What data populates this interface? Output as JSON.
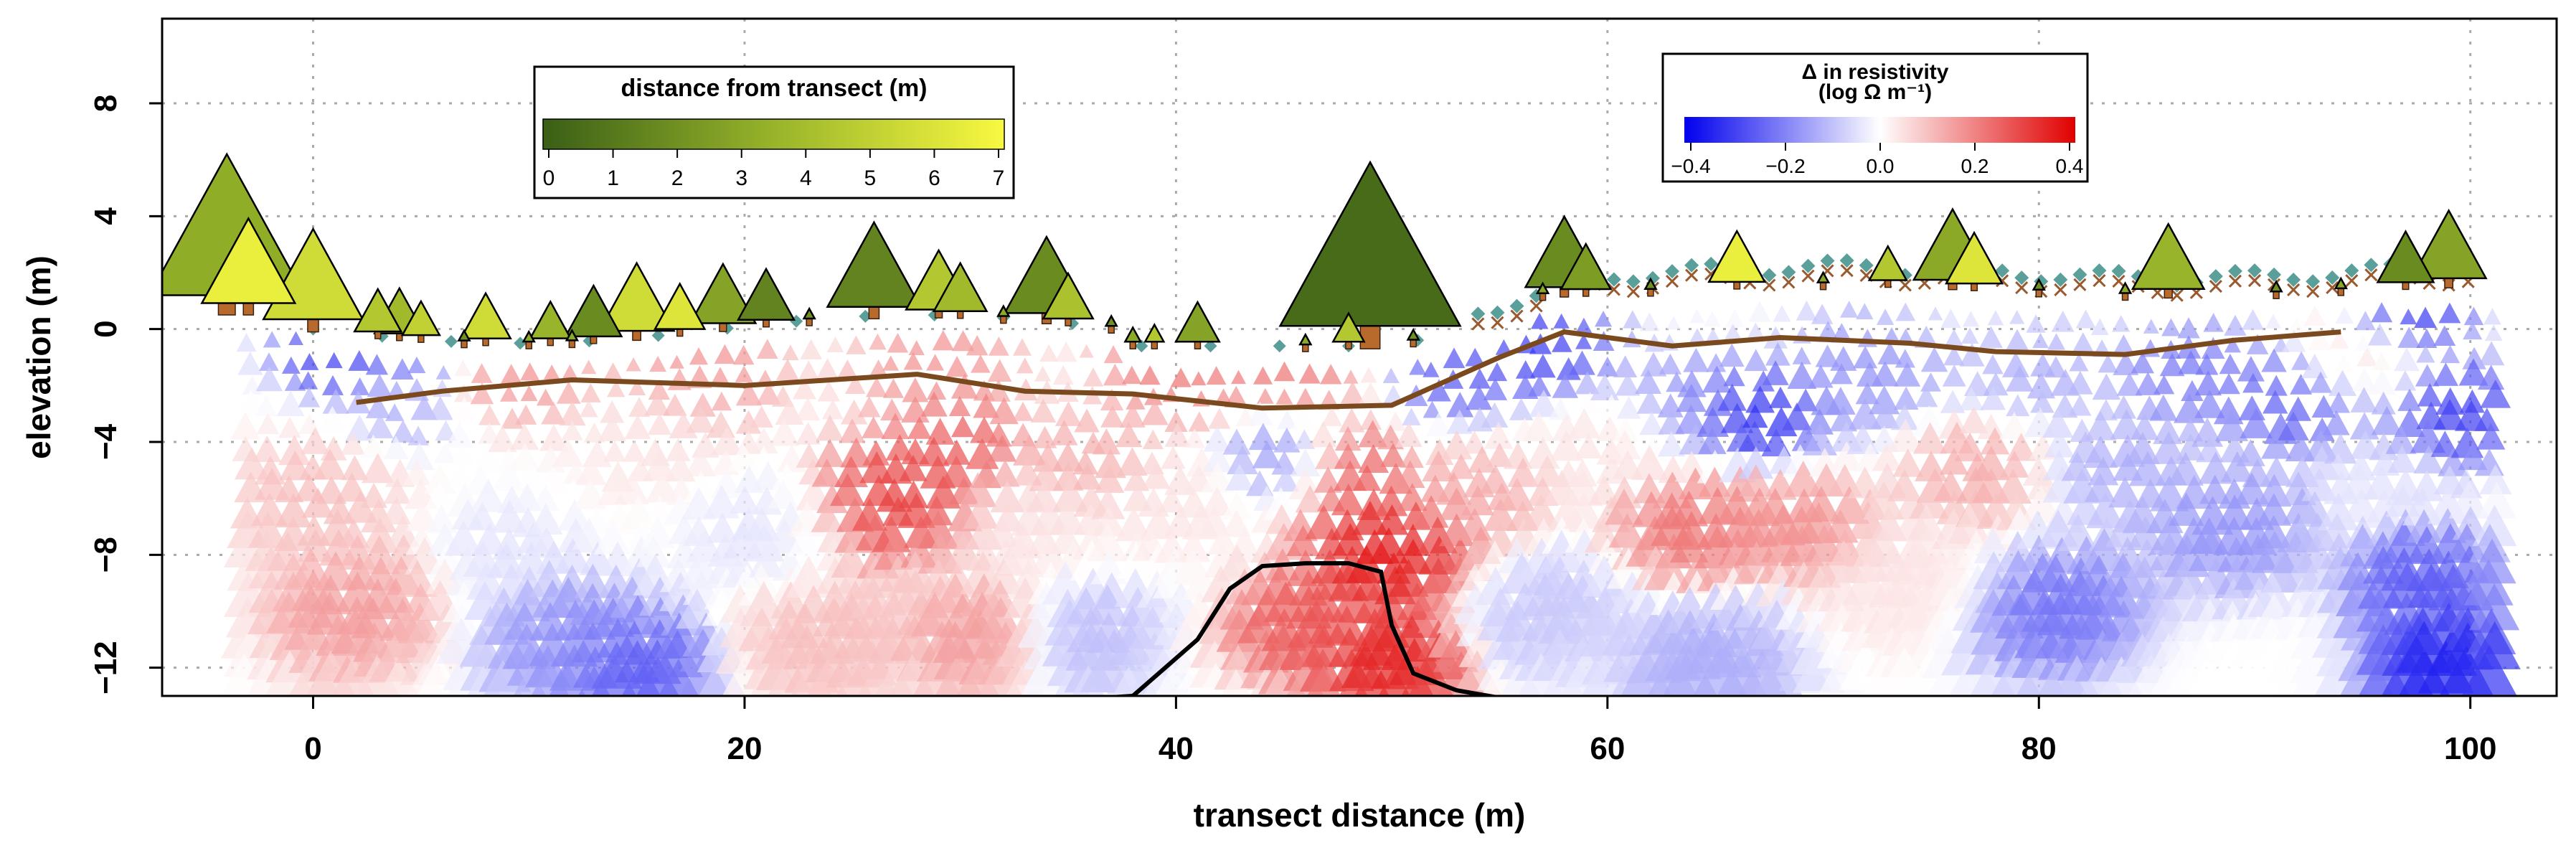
{
  "chart_data": {
    "type": "scatter",
    "xlabel": "transect distance (m)",
    "ylabel": "elevation (m)",
    "xlim": [
      -7,
      104
    ],
    "ylim": [
      -13,
      11
    ],
    "xticks": [
      0,
      20,
      40,
      60,
      80,
      100
    ],
    "xtick_labels": [
      "0",
      "20",
      "40",
      "60",
      "80",
      "100"
    ],
    "yticks": [
      -12,
      -8,
      -4,
      0,
      4,
      8
    ],
    "ytick_labels": [
      "−12",
      "−8",
      "−4",
      "0",
      "4",
      "8"
    ],
    "grid": true,
    "legends": {
      "distance": {
        "title": "distance from transect (m)",
        "tick_labels": [
          "0",
          "1",
          "2",
          "3",
          "4",
          "5",
          "6",
          "7"
        ],
        "colors": [
          "#3a5f16",
          "#f8f840"
        ],
        "placement": "top-left"
      },
      "resistivity": {
        "title_line1": "Δ in resistivity",
        "title_line2": "(log Ω m⁻¹)",
        "tick_labels": [
          "−0.4",
          "−0.2",
          "0.0",
          "0.2",
          "0.4"
        ],
        "colors": [
          "#0000ee",
          "#ffffff",
          "#e00000"
        ],
        "placement": "top-right"
      }
    },
    "trees": [
      {
        "x": -4,
        "h": 5.0,
        "d": 3.2
      },
      {
        "x": -3,
        "h": 3.0,
        "d": 6.5
      },
      {
        "x": 0,
        "h": 3.2,
        "d": 5.5
      },
      {
        "x": 3,
        "h": 1.5,
        "d": 4.5
      },
      {
        "x": 4,
        "h": 1.6,
        "d": 3.8
      },
      {
        "x": 5,
        "h": 1.2,
        "d": 5.0
      },
      {
        "x": 8,
        "h": 1.6,
        "d": 5.5
      },
      {
        "x": 11,
        "h": 1.3,
        "d": 3.5
      },
      {
        "x": 13,
        "h": 1.8,
        "d": 1.8
      },
      {
        "x": 15,
        "h": 2.4,
        "d": 5.5
      },
      {
        "x": 17,
        "h": 1.6,
        "d": 6.0
      },
      {
        "x": 19,
        "h": 2.1,
        "d": 2.8
      },
      {
        "x": 21,
        "h": 1.8,
        "d": 1.5
      },
      {
        "x": 26,
        "h": 3.0,
        "d": 1.5
      },
      {
        "x": 29,
        "h": 2.1,
        "d": 4.5
      },
      {
        "x": 30,
        "h": 1.7,
        "d": 3.8
      },
      {
        "x": 34,
        "h": 2.7,
        "d": 1.8
      },
      {
        "x": 35,
        "h": 1.6,
        "d": 4.2
      },
      {
        "x": 38,
        "h": 0.5,
        "d": 3.0
      },
      {
        "x": 39,
        "h": 0.6,
        "d": 4.5
      },
      {
        "x": 41,
        "h": 1.4,
        "d": 2.8
      },
      {
        "x": 49,
        "h": 5.8,
        "d": 0.5
      },
      {
        "x": 48,
        "h": 1.0,
        "d": 4.5
      },
      {
        "x": 58,
        "h": 2.5,
        "d": 1.8
      },
      {
        "x": 59,
        "h": 1.6,
        "d": 2.5
      },
      {
        "x": 66,
        "h": 1.8,
        "d": 6.5
      },
      {
        "x": 73,
        "h": 1.2,
        "d": 4.5
      },
      {
        "x": 76,
        "h": 2.5,
        "d": 3.0
      },
      {
        "x": 77,
        "h": 1.8,
        "d": 6.0
      },
      {
        "x": 86,
        "h": 2.3,
        "d": 3.5
      },
      {
        "x": 97,
        "h": 1.8,
        "d": 1.8
      },
      {
        "x": 99,
        "h": 2.4,
        "d": 2.8
      }
    ],
    "small_markers": [
      {
        "x": 7,
        "d": 2
      },
      {
        "x": 10,
        "d": 3
      },
      {
        "x": 12,
        "d": 3
      },
      {
        "x": 23,
        "d": 2
      },
      {
        "x": 32,
        "d": 3
      },
      {
        "x": 37,
        "d": 2
      },
      {
        "x": 46,
        "d": 3
      },
      {
        "x": 51,
        "d": 2
      },
      {
        "x": 57,
        "d": 3
      },
      {
        "x": 62,
        "d": 2
      },
      {
        "x": 70,
        "d": 3
      },
      {
        "x": 80,
        "d": 2
      },
      {
        "x": 84,
        "d": 3
      },
      {
        "x": 91,
        "d": 2
      },
      {
        "x": 94,
        "d": 3
      }
    ],
    "water_table": {
      "x": [
        2,
        6,
        12,
        20,
        28,
        33,
        38,
        44,
        50,
        55,
        58,
        63,
        68,
        74,
        78,
        84,
        89,
        94
      ],
      "y": [
        -2.6,
        -2.2,
        -1.8,
        -2.0,
        -1.6,
        -2.2,
        -2.3,
        -2.8,
        -2.7,
        -1.0,
        -0.1,
        -0.6,
        -0.3,
        -0.5,
        -0.8,
        -0.9,
        -0.4,
        -0.1
      ]
    },
    "black_curve": {
      "x": [
        34,
        38,
        41,
        42.5,
        44,
        46,
        48,
        49.5,
        50,
        51,
        53,
        56
      ],
      "y": [
        -13.2,
        -13.0,
        -11.0,
        -9.2,
        -8.4,
        -8.3,
        -8.3,
        -8.6,
        -10.5,
        -12.2,
        -12.8,
        -13.2
      ]
    },
    "resistivity_zones": [
      {
        "x": 1,
        "y": -0.8,
        "r": 2.5,
        "v": -0.35
      },
      {
        "x": 5,
        "y": -0.8,
        "r": 2.0,
        "v": -0.25
      },
      {
        "x": 4,
        "y": -2.8,
        "r": 2.2,
        "v": -0.15
      },
      {
        "x": 0,
        "y": -6,
        "r": 3.5,
        "v": 0.12
      },
      {
        "x": 2,
        "y": -10,
        "r": 3.5,
        "v": 0.18
      },
      {
        "x": 9,
        "y": -8,
        "r": 3,
        "v": -0.05
      },
      {
        "x": 12,
        "y": -11,
        "r": 3.5,
        "v": -0.2
      },
      {
        "x": 15,
        "y": -12,
        "r": 3,
        "v": -0.3
      },
      {
        "x": 16,
        "y": -4,
        "r": 3.5,
        "v": 0.05
      },
      {
        "x": 10,
        "y": -1.4,
        "r": 3,
        "v": 0.2
      },
      {
        "x": 18,
        "y": -1.4,
        "r": 3.5,
        "v": 0.2
      },
      {
        "x": 21,
        "y": -7,
        "r": 3.5,
        "v": -0.05
      },
      {
        "x": 24,
        "y": -11,
        "r": 3.5,
        "v": 0.12
      },
      {
        "x": 27,
        "y": -6,
        "r": 3.5,
        "v": 0.35
      },
      {
        "x": 30,
        "y": -4,
        "r": 2.5,
        "v": 0.3
      },
      {
        "x": 29,
        "y": -1.3,
        "r": 3.5,
        "v": 0.2
      },
      {
        "x": 33,
        "y": -7,
        "r": 3,
        "v": 0.05
      },
      {
        "x": 31,
        "y": -11,
        "r": 3,
        "v": 0.18
      },
      {
        "x": 36,
        "y": -11,
        "r": 3,
        "v": -0.12
      },
      {
        "x": 36,
        "y": -4.5,
        "r": 3,
        "v": 0.15
      },
      {
        "x": 40,
        "y": -1.3,
        "r": 3,
        "v": 0.25
      },
      {
        "x": 40,
        "y": -6,
        "r": 3,
        "v": 0.05
      },
      {
        "x": 45,
        "y": -1.3,
        "r": 3,
        "v": 0.25
      },
      {
        "x": 45,
        "y": -4.5,
        "r": 2.5,
        "v": -0.2
      },
      {
        "x": 46,
        "y": -10.5,
        "r": 3,
        "v": 0.3
      },
      {
        "x": 50,
        "y": -8,
        "r": 3.5,
        "v": 0.42
      },
      {
        "x": 50,
        "y": -12,
        "r": 3,
        "v": 0.4
      },
      {
        "x": 48,
        "y": -5,
        "r": 2.5,
        "v": 0.3
      },
      {
        "x": 54,
        "y": -6,
        "r": 3,
        "v": 0.15
      },
      {
        "x": 53,
        "y": -1.5,
        "r": 2.5,
        "v": -0.3
      },
      {
        "x": 57,
        "y": -0.6,
        "r": 3,
        "v": -0.35
      },
      {
        "x": 57,
        "y": -10,
        "r": 3.5,
        "v": -0.1
      },
      {
        "x": 60,
        "y": -4,
        "r": 3,
        "v": 0.05
      },
      {
        "x": 64,
        "y": -7,
        "r": 3,
        "v": 0.25
      },
      {
        "x": 64,
        "y": -2.5,
        "r": 3,
        "v": -0.2
      },
      {
        "x": 67,
        "y": -3,
        "r": 2.5,
        "v": -0.4
      },
      {
        "x": 69,
        "y": -7,
        "r": 3,
        "v": 0.2
      },
      {
        "x": 65,
        "y": -12,
        "r": 3.5,
        "v": -0.15
      },
      {
        "x": 72,
        "y": -1.5,
        "r": 3.5,
        "v": -0.2
      },
      {
        "x": 74,
        "y": -9,
        "r": 3.5,
        "v": 0.05
      },
      {
        "x": 77,
        "y": -5,
        "r": 3,
        "v": 0.15
      },
      {
        "x": 80,
        "y": -1.5,
        "r": 3,
        "v": -0.15
      },
      {
        "x": 81,
        "y": -10,
        "r": 3.5,
        "v": -0.25
      },
      {
        "x": 84,
        "y": -5,
        "r": 3,
        "v": -0.15
      },
      {
        "x": 87,
        "y": -1.5,
        "r": 3,
        "v": -0.25
      },
      {
        "x": 89,
        "y": -7,
        "r": 3.5,
        "v": -0.2
      },
      {
        "x": 92,
        "y": -2.5,
        "r": 3,
        "v": -0.3
      },
      {
        "x": 95,
        "y": -1,
        "r": 3,
        "v": 0.1
      },
      {
        "x": 96,
        "y": -5,
        "r": 2.5,
        "v": -0.05
      },
      {
        "x": 99,
        "y": -3,
        "r": 3,
        "v": -0.35
      },
      {
        "x": 98,
        "y": -9,
        "r": 3,
        "v": -0.3
      },
      {
        "x": 99,
        "y": -12,
        "r": 3,
        "v": -0.4
      },
      {
        "x": 97,
        "y": 0.5,
        "r": 2.5,
        "v": -0.4
      }
    ]
  }
}
